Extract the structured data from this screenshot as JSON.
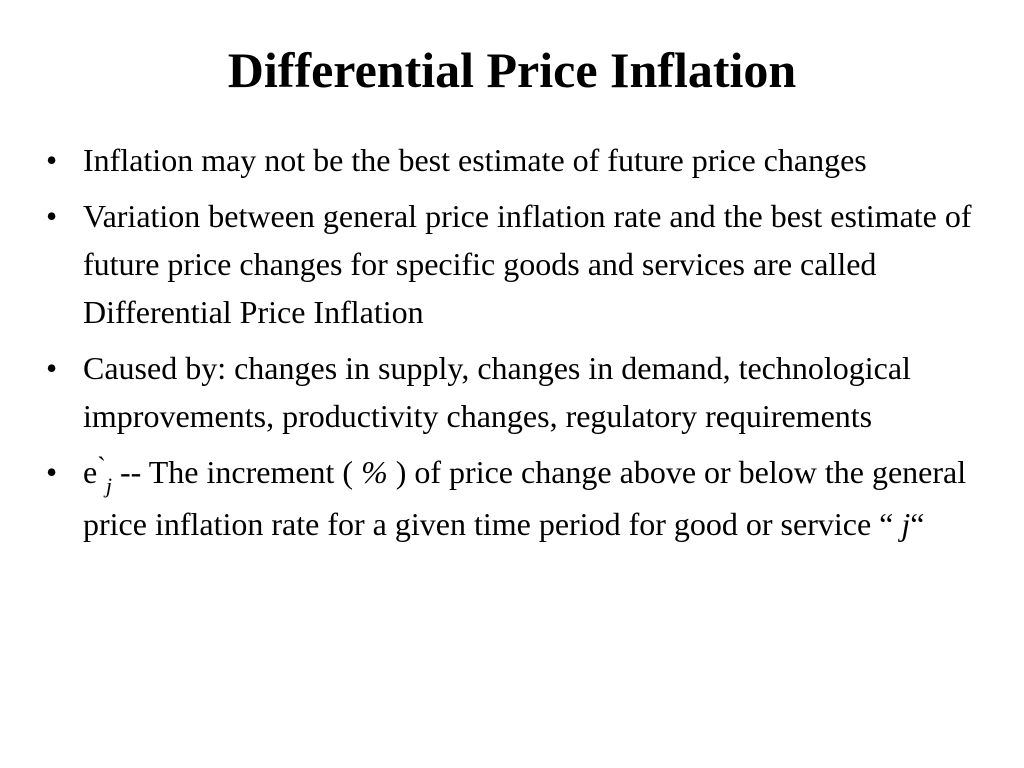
{
  "slide": {
    "title": "Differential Price Inflation",
    "bullet_symbol": "•",
    "bullets": [
      {
        "text": "Inflation may not be the best estimate of future price changes"
      },
      {
        "text": "Variation between general price inflation rate and the best estimate of future price changes for specific goods and services are called Differential Price Inflation"
      },
      {
        "text": "Caused by:  changes in supply, changes in demand, technological improvements, productivity changes, regulatory requirements"
      },
      {
        "symbol_base": "e",
        "symbol_mark": "`",
        "symbol_sub": "j",
        "text_a": " -- The increment ( ",
        "percent": "%",
        "text_b": " ) of price change above or below the general price inflation rate for a given time period for good or service “ ",
        "j": "j",
        "text_c": "“"
      }
    ]
  }
}
